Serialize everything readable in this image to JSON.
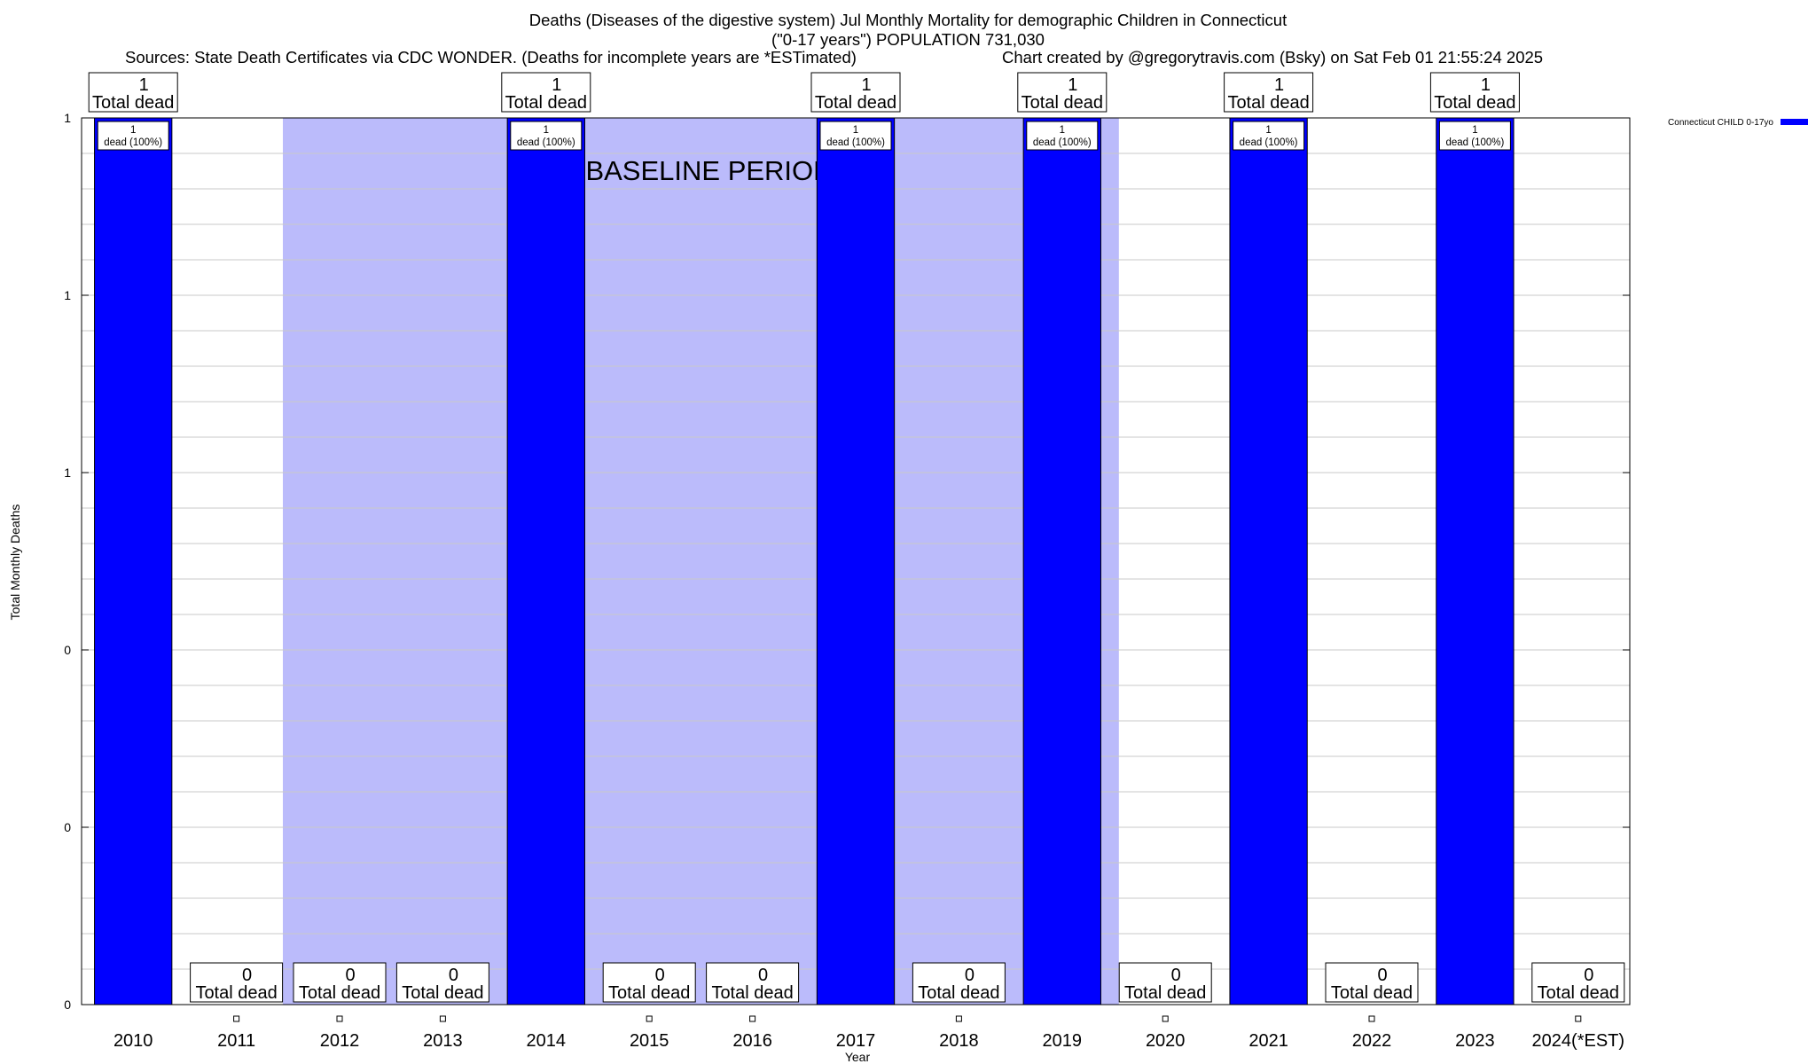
{
  "header": {
    "title_line1": "Deaths (Diseases of the digestive system) Jul Monthly Mortality for demographic Children in Connecticut",
    "title_line2": "(\"0-17 years\") POPULATION 731,030",
    "sources": "Sources: State Death Certificates via CDC WONDER. (Deaths for incomplete years are *ESTimated)",
    "credit": "Chart created by @gregorytravis.com (Bsky) on Sat Feb 01 21:55:24 2025"
  },
  "chart_data": {
    "type": "bar",
    "xlabel": "Year",
    "ylabel": "Total Monthly Deaths",
    "ylim": [
      0,
      1
    ],
    "y_tick_labels": [
      "0",
      "0",
      "0",
      "1",
      "1",
      "1"
    ],
    "categories": [
      "2010",
      "2011",
      "2012",
      "2013",
      "2014",
      "2015",
      "2016",
      "2017",
      "2018",
      "2019",
      "2020",
      "2021",
      "2022",
      "2023",
      "2024(*EST)"
    ],
    "series": [
      {
        "name": "Connecticut CHILD 0-17yo",
        "color": "#0000ff",
        "values": [
          1,
          0,
          0,
          0,
          1,
          0,
          0,
          1,
          0,
          1,
          0,
          1,
          0,
          1,
          0
        ]
      }
    ],
    "total_labels": [
      "1",
      "0",
      "0",
      "0",
      "1",
      "0",
      "0",
      "1",
      "0",
      "1",
      "0",
      "1",
      "0",
      "1",
      "0"
    ],
    "total_caption": "Total dead",
    "bar_labels": [
      "1",
      "",
      "",
      "",
      "1",
      "",
      "",
      "1",
      "",
      "1",
      "",
      "1",
      "",
      "1",
      ""
    ],
    "bar_caption": "dead (100%)",
    "baseline": {
      "label": "BASELINE PERIOD",
      "from": "2012",
      "to": "2019",
      "color": "#bbbbfb"
    },
    "grid": true,
    "legend_position": "top-right"
  }
}
